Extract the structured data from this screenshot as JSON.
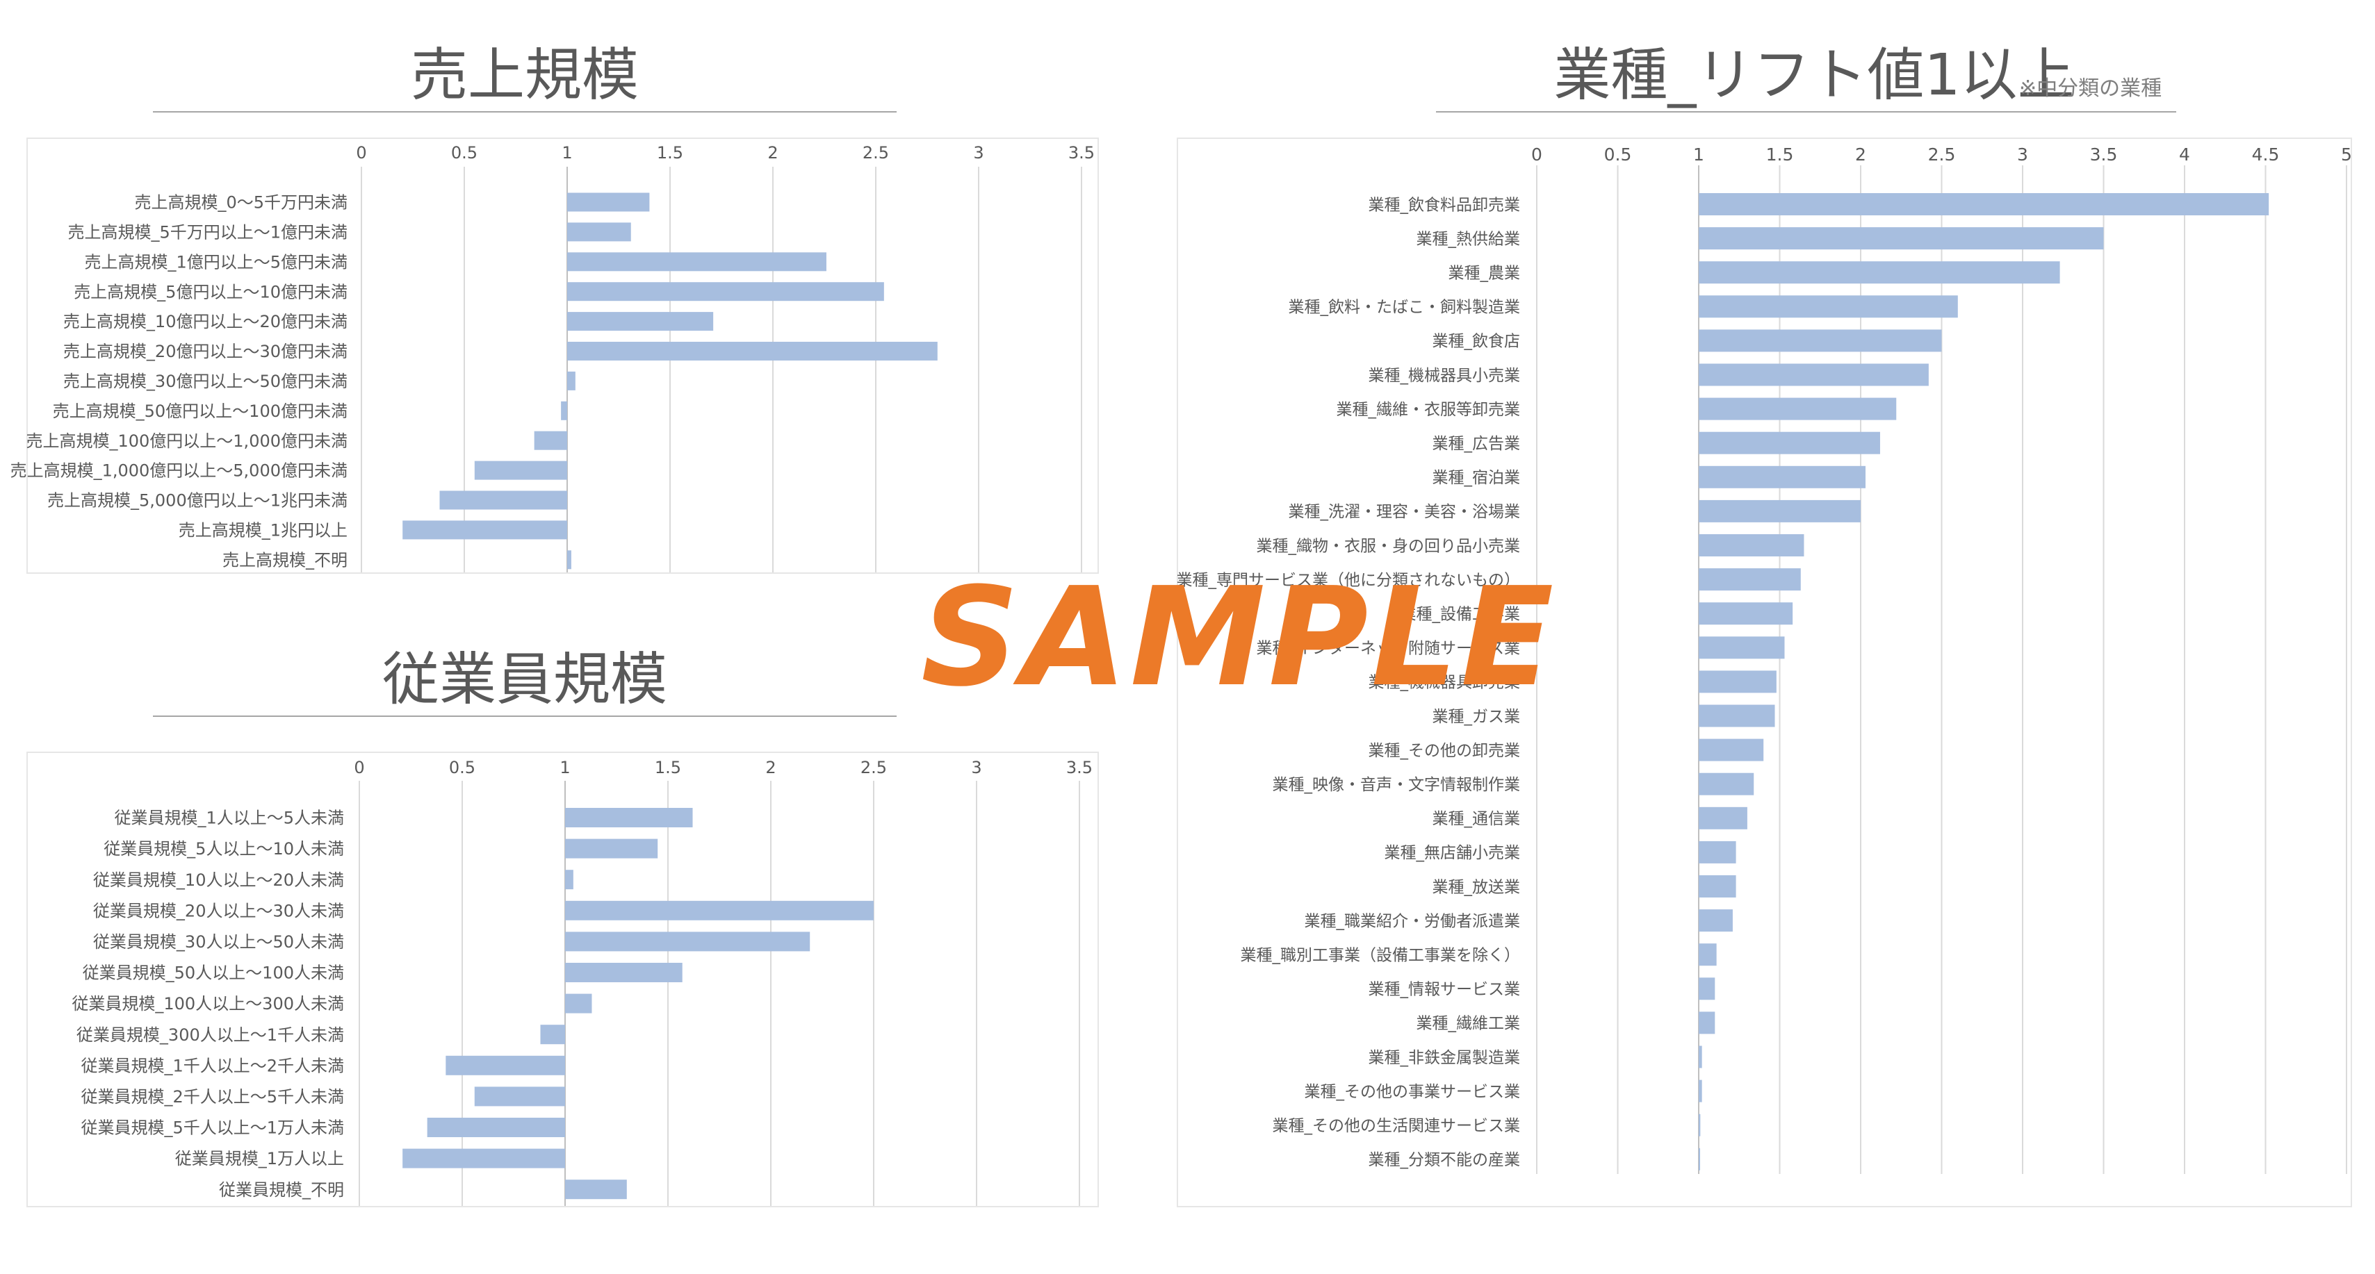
{
  "charts": {
    "sales": {
      "title": "売上規模",
      "chart_data": {
        "type": "bar",
        "orientation": "horizontal",
        "baseline": 1,
        "xlim": [
          0,
          3.5
        ],
        "ticks": [
          "0",
          "0.5",
          "1",
          "1.5",
          "2",
          "2.5",
          "3",
          "3.5"
        ],
        "grid": true,
        "categories": [
          "売上高規模_0～5千万円未満",
          "売上高規模_5千万円以上～1億円未満",
          "売上高規模_1億円以上～5億円未満",
          "売上高規模_5億円以上～10億円未満",
          "売上高規模_10億円以上～20億円未満",
          "売上高規模_20億円以上～30億円未満",
          "売上高規模_30億円以上～50億円未満",
          "売上高規模_50億円以上～100億円未満",
          "売上高規模_100億円以上～1,000億円未満",
          "売上高規模_1,000億円以上～5,000億円未満",
          "売上高規模_5,000億円以上～1兆円未満",
          "売上高規模_1兆円以上",
          "売上高規模_不明"
        ],
        "values": [
          1.4,
          1.31,
          2.26,
          2.54,
          1.71,
          2.8,
          1.04,
          0.97,
          0.84,
          0.55,
          0.38,
          0.2,
          1.02
        ]
      }
    },
    "employees": {
      "title": "従業員規模",
      "chart_data": {
        "type": "bar",
        "orientation": "horizontal",
        "baseline": 1,
        "xlim": [
          0,
          3.5
        ],
        "ticks": [
          "0",
          "0.5",
          "1",
          "1.5",
          "2",
          "2.5",
          "3",
          "3.5"
        ],
        "grid": true,
        "categories": [
          "従業員規模_1人以上～5人未満",
          "従業員規模_5人以上～10人未満",
          "従業員規模_10人以上～20人未満",
          "従業員規模_20人以上～30人未満",
          "従業員規模_30人以上～50人未満",
          "従業員規模_50人以上～100人未満",
          "従業員規模_100人以上～300人未満",
          "従業員規模_300人以上～1千人未満",
          "従業員規模_1千人以上～2千人未満",
          "従業員規模_2千人以上～5千人未満",
          "従業員規模_5千人以上～1万人未満",
          "従業員規模_1万人以上",
          "従業員規模_不明"
        ],
        "values": [
          1.62,
          1.45,
          1.04,
          2.5,
          2.19,
          1.57,
          1.13,
          0.88,
          0.42,
          0.56,
          0.33,
          0.21,
          1.3
        ]
      }
    },
    "industry": {
      "title": "業種_リフト値1以上",
      "note": "※中分類の業種",
      "chart_data": {
        "type": "bar",
        "orientation": "horizontal",
        "baseline": 1,
        "xlim": [
          0,
          5
        ],
        "ticks": [
          "0",
          "0.5",
          "1",
          "1.5",
          "2",
          "2.5",
          "3",
          "3.5",
          "4",
          "4.5",
          "5"
        ],
        "grid": true,
        "categories": [
          "業種_飲食料品卸売業",
          "業種_熱供給業",
          "業種_農業",
          "業種_飲料・たばこ・飼料製造業",
          "業種_飲食店",
          "業種_機械器具小売業",
          "業種_繊維・衣服等卸売業",
          "業種_広告業",
          "業種_宿泊業",
          "業種_洗濯・理容・美容・浴場業",
          "業種_織物・衣服・身の回り品小売業",
          "業種_専門サービス業（他に分類されないもの）",
          "業種_設備工事業",
          "業種_インターネット附随サービス業",
          "業種_機械器具卸売業",
          "業種_ガス業",
          "業種_その他の卸売業",
          "業種_映像・音声・文字情報制作業",
          "業種_通信業",
          "業種_無店舗小売業",
          "業種_放送業",
          "業種_職業紹介・労働者派遣業",
          "業種_職別工事業（設備工事業を除く）",
          "業種_情報サービス業",
          "業種_繊維工業",
          "業種_非鉄金属製造業",
          "業種_その他の事業サービス業",
          "業種_その他の生活関連サービス業",
          "業種_分類不能の産業"
        ],
        "values": [
          4.52,
          3.5,
          3.23,
          2.6,
          2.5,
          2.42,
          2.22,
          2.12,
          2.03,
          2.0,
          1.65,
          1.63,
          1.58,
          1.53,
          1.48,
          1.47,
          1.4,
          1.34,
          1.3,
          1.23,
          1.23,
          1.21,
          1.11,
          1.1,
          1.1,
          1.02,
          1.02,
          1.01,
          1.0
        ]
      }
    }
  },
  "watermark": "SAMPLE",
  "colors": {
    "bar": "#a7bedf",
    "grid": "#dadada",
    "axis": "#bfbfbf",
    "text": "#595959",
    "title": "#595959",
    "watermark": "#ec7a28"
  }
}
